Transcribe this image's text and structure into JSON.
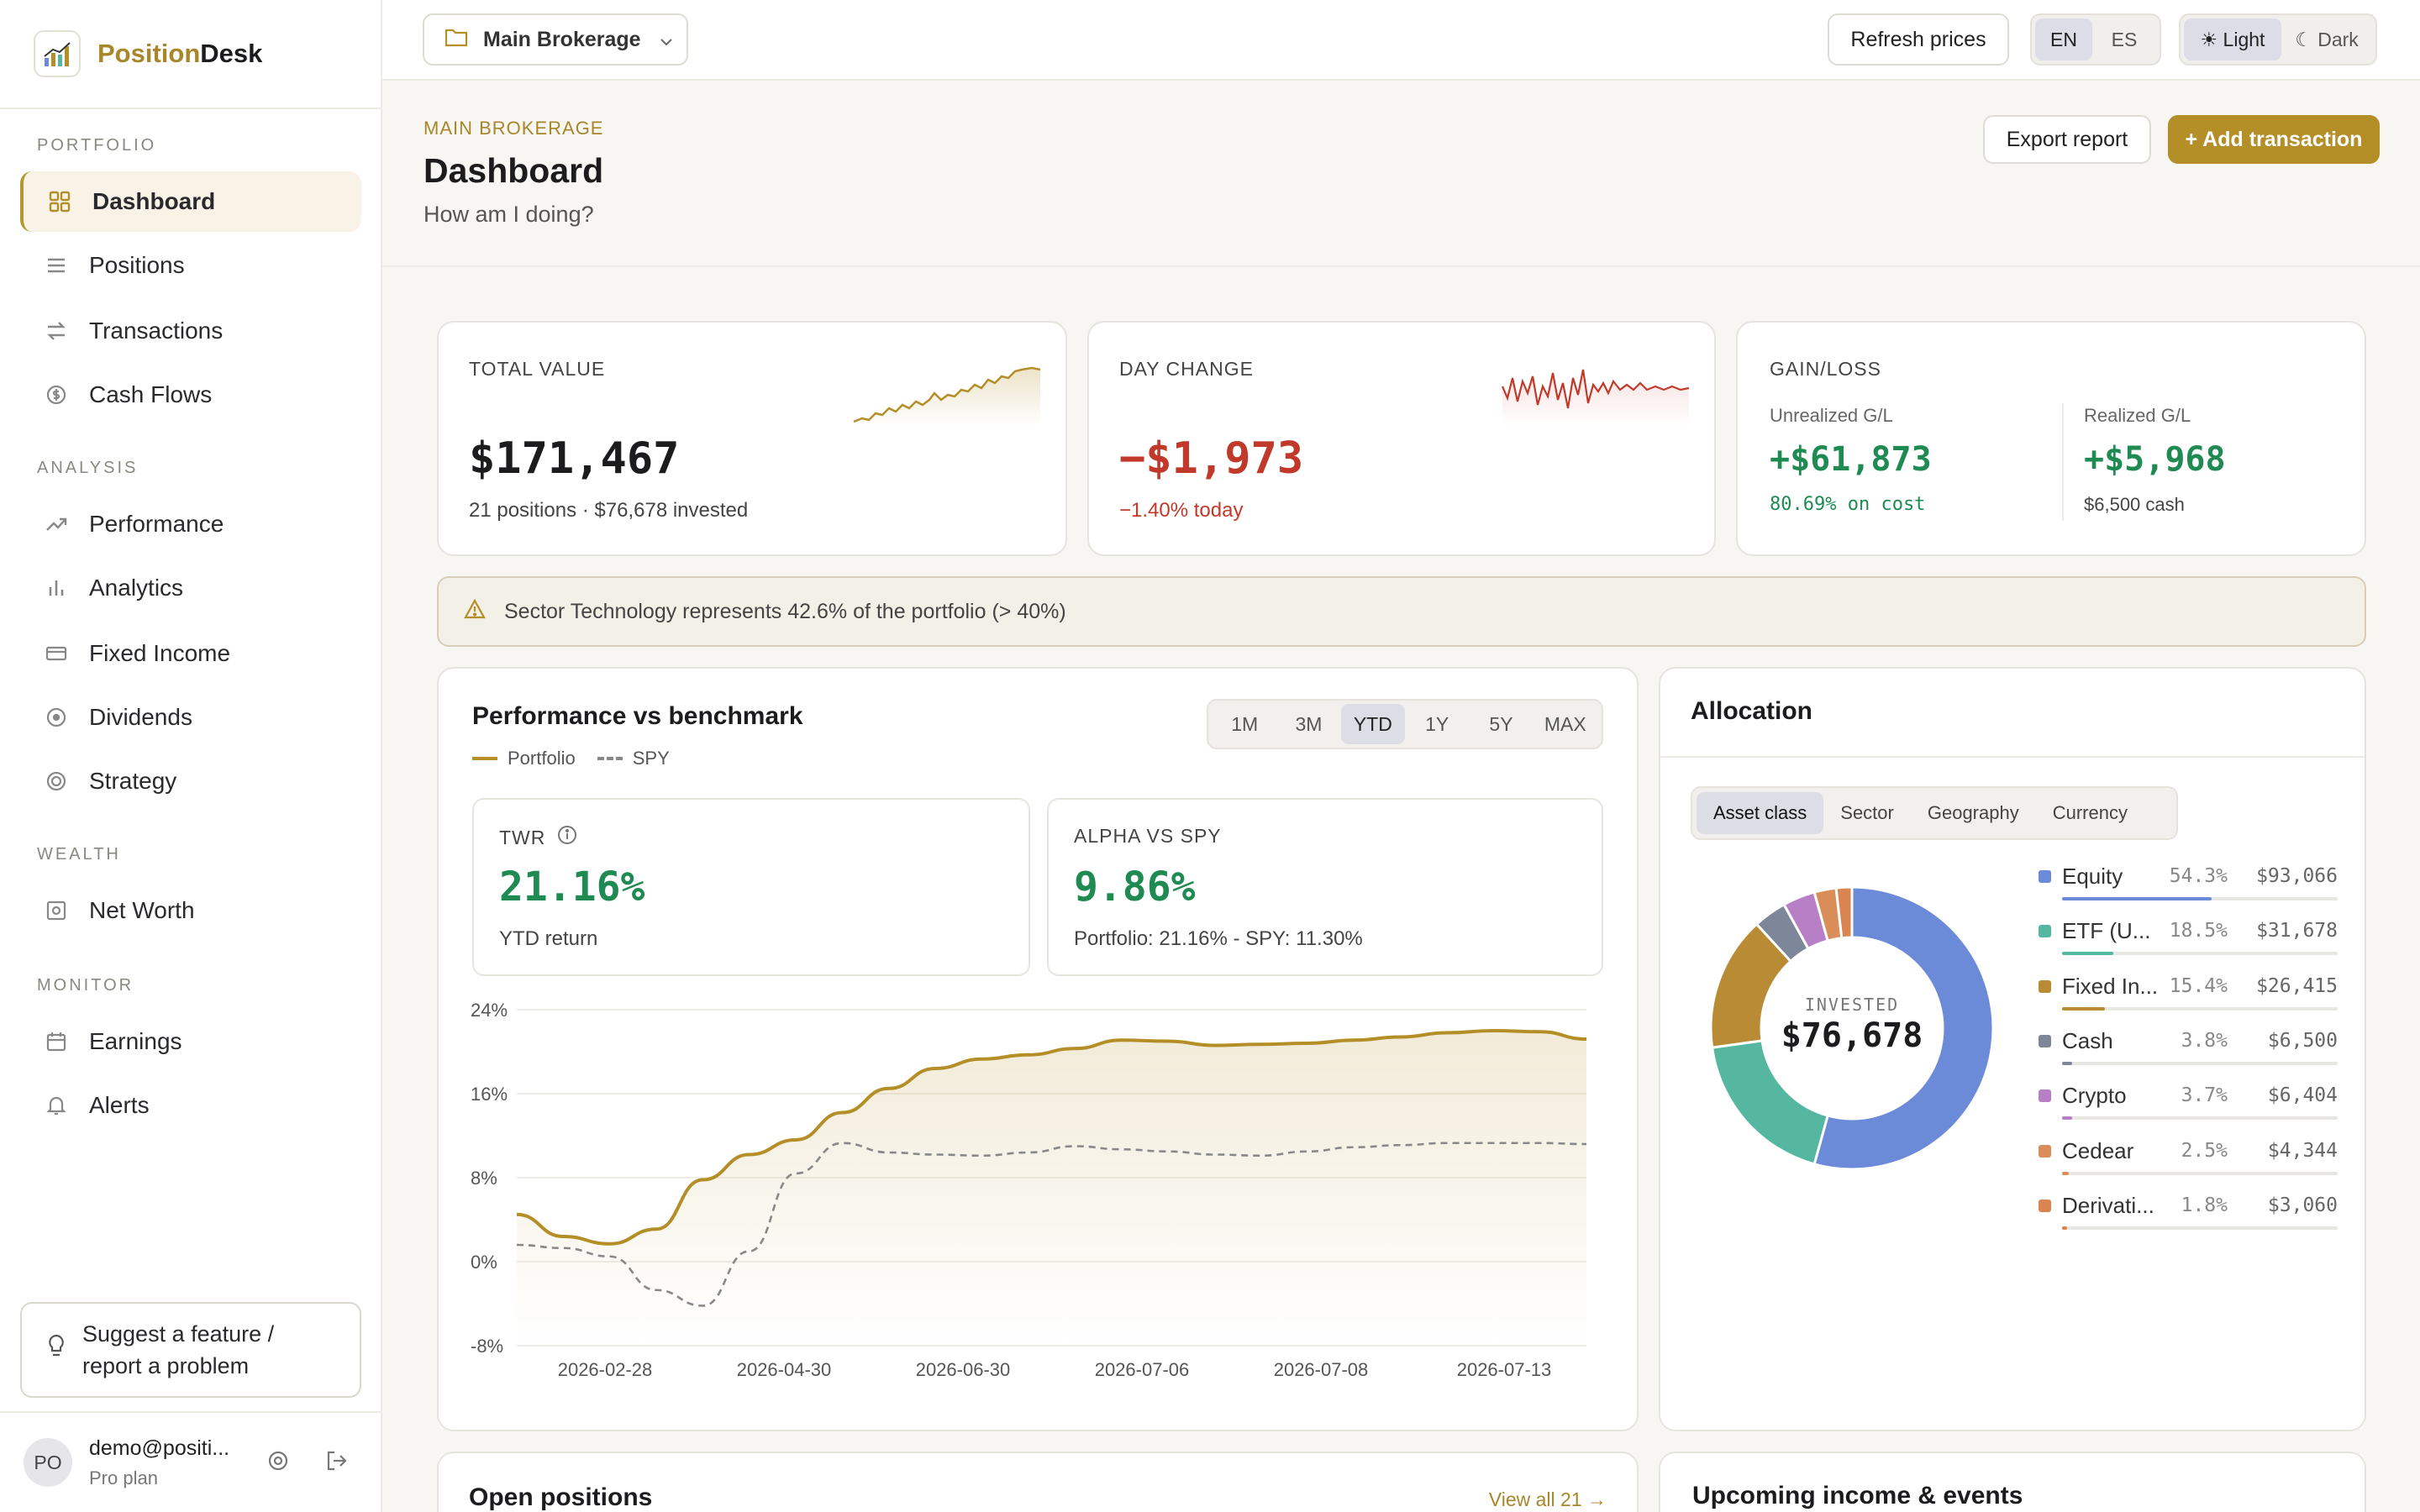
{
  "brand": {
    "name_a": "Position",
    "name_b": "Desk"
  },
  "nav": {
    "sections": [
      "PORTFOLIO",
      "ANALYSIS",
      "WEALTH",
      "MONITOR"
    ],
    "items": [
      {
        "label": "Dashboard",
        "icon": "grid-icon"
      },
      {
        "label": "Positions",
        "icon": "list-icon"
      },
      {
        "label": "Transactions",
        "icon": "arrows-icon"
      },
      {
        "label": "Cash Flows",
        "icon": "dollar-circle-icon"
      },
      {
        "label": "Performance",
        "icon": "trend-up-icon"
      },
      {
        "label": "Analytics",
        "icon": "bar-chart-icon"
      },
      {
        "label": "Fixed Income",
        "icon": "card-icon"
      },
      {
        "label": "Dividends",
        "icon": "coin-icon"
      },
      {
        "label": "Strategy",
        "icon": "target-icon"
      },
      {
        "label": "Net Worth",
        "icon": "safe-icon"
      },
      {
        "label": "Earnings",
        "icon": "calendar-icon"
      },
      {
        "label": "Alerts",
        "icon": "bell-icon"
      }
    ],
    "suggest": "Suggest a feature / report a problem"
  },
  "user": {
    "initials": "PO",
    "email": "demo@positi...",
    "plan": "Pro plan"
  },
  "topbar": {
    "account": "Main Brokerage",
    "refresh": "Refresh prices",
    "lang": [
      "EN",
      "ES"
    ],
    "lang_active": "EN",
    "theme_light": "☀ Light",
    "theme_dark": "☾ Dark"
  },
  "header": {
    "crumb": "MAIN BROKERAGE",
    "title": "Dashboard",
    "subtitle": "How am I doing?",
    "export": "Export report",
    "add": "+ Add transaction"
  },
  "total": {
    "label": "TOTAL VALUE",
    "value": "$171,467",
    "sub": "21 positions · $76,678 invested"
  },
  "day": {
    "label": "DAY CHANGE",
    "value": "−$1,973",
    "sub": "−1.40% today"
  },
  "gain": {
    "label": "GAIN/LOSS",
    "unreal_label": "Unrealized G/L",
    "unreal": "+$61,873",
    "unreal_sub": "80.69% on cost",
    "real_label": "Realized G/L",
    "real": "+$5,968",
    "real_sub": "$6,500 cash"
  },
  "alert": "Sector Technology represents 42.6% of the portfolio (> 40%)",
  "perf": {
    "title": "Performance vs benchmark",
    "ranges": [
      "1M",
      "3M",
      "YTD",
      "1Y",
      "5Y",
      "MAX"
    ],
    "range_active": "YTD",
    "legend": [
      "Portfolio",
      "SPY"
    ],
    "twr_label": "TWR",
    "twr": "21.16%",
    "twr_sub": "YTD return",
    "alpha_label": "ALPHA VS SPY",
    "alpha": "9.86%",
    "alpha_sub": "Portfolio: 21.16% - SPY: 11.30%"
  },
  "chart_data": {
    "type": "line",
    "yticks": [
      "24%",
      "16%",
      "8%",
      "0%",
      "-8%"
    ],
    "ylim": [
      -8,
      24
    ],
    "xticks": [
      "2026-02-28",
      "2026-04-30",
      "2026-06-30",
      "2026-07-06",
      "2026-07-08",
      "2026-07-13"
    ],
    "series": [
      {
        "name": "Portfolio",
        "values": [
          4.5,
          2.4,
          1.7,
          3.1,
          7.8,
          10.2,
          11.6,
          14.2,
          16.5,
          18.4,
          19.3,
          19.7,
          20.3,
          21.1,
          21.0,
          20.6,
          20.7,
          20.8,
          21.1,
          21.4,
          21.8,
          22.0,
          21.9,
          21.2
        ]
      },
      {
        "name": "SPY",
        "values": [
          1.6,
          1.3,
          0.5,
          -2.7,
          -4.2,
          1.0,
          8.4,
          11.3,
          10.4,
          10.2,
          10.1,
          10.4,
          11.0,
          10.7,
          10.5,
          10.2,
          10.1,
          10.5,
          10.9,
          11.1,
          11.3,
          11.3,
          11.3,
          11.2
        ]
      }
    ]
  },
  "alloc": {
    "title": "Allocation",
    "tabs": [
      "Asset class",
      "Sector",
      "Geography",
      "Currency"
    ],
    "tab_active": "Asset class",
    "center_label": "INVESTED",
    "center_value": "$76,678",
    "items": [
      {
        "name": "Equity",
        "pct": "54.3%",
        "val": "$93,066",
        "p": 54.3,
        "color": "#6b8ad8"
      },
      {
        "name": "ETF (U...",
        "pct": "18.5%",
        "val": "$31,678",
        "p": 18.5,
        "color": "#55b7a0"
      },
      {
        "name": "Fixed In...",
        "pct": "15.4%",
        "val": "$26,415",
        "p": 15.4,
        "color": "#b98b35"
      },
      {
        "name": "Cash",
        "pct": "3.8%",
        "val": "$6,500",
        "p": 3.8,
        "color": "#7d8799"
      },
      {
        "name": "Crypto",
        "pct": "3.7%",
        "val": "$6,404",
        "p": 3.7,
        "color": "#b77fc6"
      },
      {
        "name": "Cedear",
        "pct": "2.5%",
        "val": "$4,344",
        "p": 2.5,
        "color": "#d98d59"
      },
      {
        "name": "Derivati...",
        "pct": "1.8%",
        "val": "$3,060",
        "p": 1.8,
        "color": "#d98451"
      }
    ]
  },
  "open": {
    "title": "Open positions",
    "view_all": "View all 21 →"
  },
  "upcoming": {
    "title": "Upcoming income & events"
  }
}
